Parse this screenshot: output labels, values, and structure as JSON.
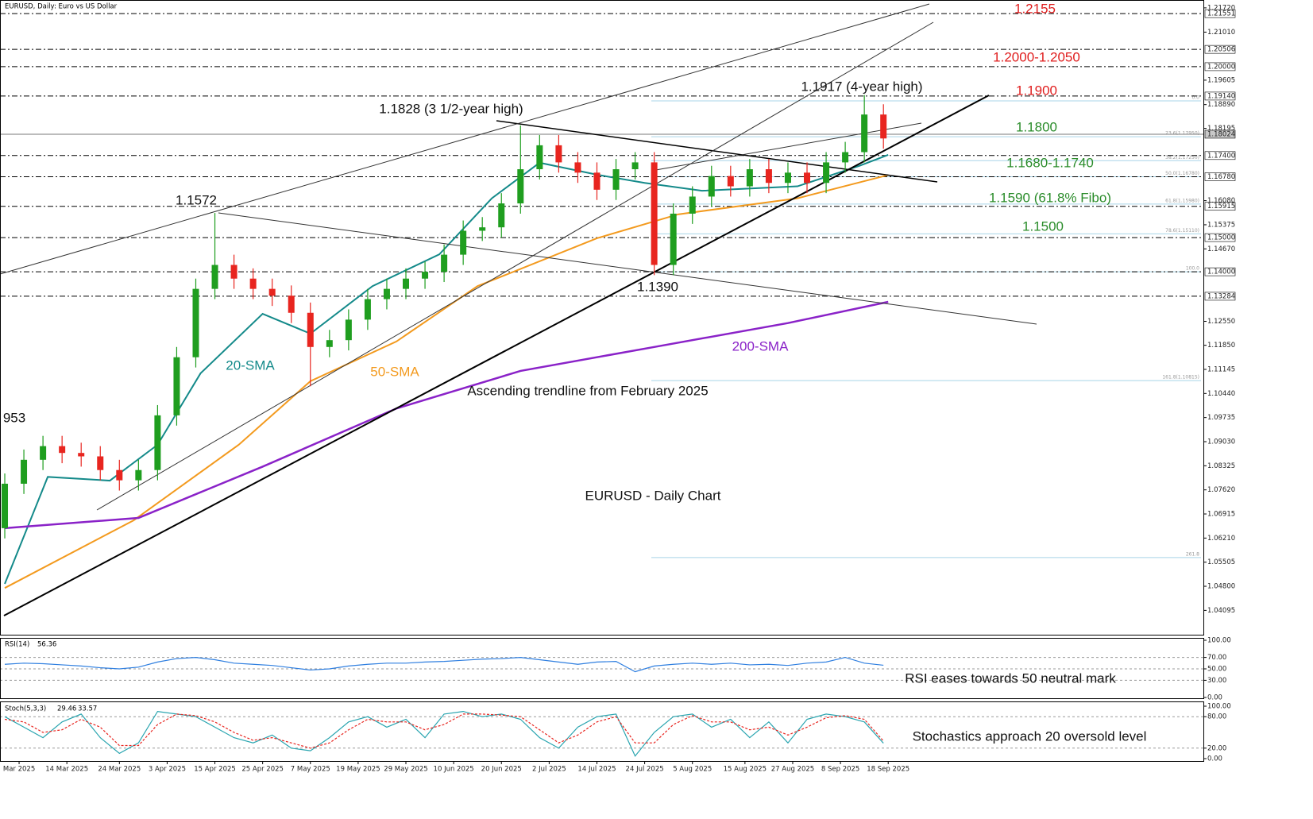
{
  "chart_data": [
    {
      "type": "candlestick",
      "title": "EURUSD, Daily:  Euro vs US Dollar",
      "x": [
        0,
        4,
        8,
        12,
        16,
        20,
        24,
        28,
        32,
        36,
        40,
        44,
        48,
        52,
        56,
        60,
        64,
        68,
        72,
        76,
        80,
        84,
        88,
        92,
        96,
        100,
        104,
        108,
        112,
        116,
        120,
        124,
        128,
        132,
        136,
        140,
        144,
        148,
        152,
        156,
        160,
        164,
        168,
        172,
        176,
        180,
        184
      ],
      "open": [
        1.065,
        1.078,
        1.085,
        1.089,
        1.087,
        1.086,
        1.082,
        1.079,
        1.082,
        1.098,
        1.115,
        1.135,
        1.142,
        1.138,
        1.135,
        1.133,
        1.128,
        1.118,
        1.12,
        1.126,
        1.132,
        1.135,
        1.138,
        1.14,
        1.145,
        1.152,
        1.153,
        1.16,
        1.17,
        1.177,
        1.172,
        1.169,
        1.164,
        1.17,
        1.172,
        1.142,
        1.157,
        1.162,
        1.168,
        1.165,
        1.17,
        1.166,
        1.169,
        1.166,
        1.172,
        1.175,
        1.186
      ],
      "high": [
        1.081,
        1.088,
        1.092,
        1.092,
        1.09,
        1.089,
        1.085,
        1.085,
        1.101,
        1.118,
        1.138,
        1.1572,
        1.145,
        1.141,
        1.138,
        1.136,
        1.131,
        1.123,
        1.129,
        1.135,
        1.138,
        1.141,
        1.143,
        1.148,
        1.155,
        1.156,
        1.163,
        1.1828,
        1.18,
        1.18,
        1.175,
        1.172,
        1.173,
        1.175,
        1.175,
        1.16,
        1.165,
        1.171,
        1.171,
        1.173,
        1.173,
        1.172,
        1.172,
        1.175,
        1.178,
        1.1917,
        1.189
      ],
      "low": [
        1.062,
        1.075,
        1.082,
        1.084,
        1.083,
        1.079,
        1.076,
        1.076,
        1.079,
        1.095,
        1.112,
        1.132,
        1.135,
        1.132,
        1.13,
        1.125,
        1.1065,
        1.115,
        1.117,
        1.123,
        1.129,
        1.132,
        1.135,
        1.137,
        1.142,
        1.149,
        1.15,
        1.157,
        1.167,
        1.169,
        1.166,
        1.161,
        1.161,
        1.167,
        1.139,
        1.139,
        1.154,
        1.159,
        1.162,
        1.162,
        1.163,
        1.163,
        1.163,
        1.163,
        1.169,
        1.172,
        1.176
      ],
      "close": [
        1.078,
        1.085,
        1.089,
        1.087,
        1.086,
        1.082,
        1.079,
        1.082,
        1.098,
        1.115,
        1.135,
        1.142,
        1.138,
        1.135,
        1.133,
        1.128,
        1.118,
        1.12,
        1.126,
        1.132,
        1.135,
        1.138,
        1.14,
        1.145,
        1.152,
        1.153,
        1.16,
        1.17,
        1.177,
        1.172,
        1.169,
        1.164,
        1.17,
        1.172,
        1.142,
        1.157,
        1.162,
        1.168,
        1.165,
        1.17,
        1.166,
        1.169,
        1.166,
        1.172,
        1.175,
        1.186,
        1.179
      ],
      "up_color": "#1f9e1f",
      "down_color": "#e8251f",
      "xlim": [
        -1,
        251
      ],
      "xticks": [
        {
          "value": 3,
          "label": "Mar 2025"
        },
        {
          "value": 13,
          "label": "14 Mar 2025"
        },
        {
          "value": 24,
          "label": "24 Mar 2025"
        },
        {
          "value": 34,
          "label": "3 Apr 2025"
        },
        {
          "value": 44,
          "label": "15 Apr 2025"
        },
        {
          "value": 54,
          "label": "25 Apr 2025"
        },
        {
          "value": 64,
          "label": "7 May 2025"
        },
        {
          "value": 74,
          "label": "19 May 2025"
        },
        {
          "value": 84,
          "label": "29 May 2025"
        },
        {
          "value": 94,
          "label": "10 Jun 2025"
        },
        {
          "value": 104,
          "label": "20 Jun 2025"
        },
        {
          "value": 114,
          "label": "2 Jul 2025"
        },
        {
          "value": 124,
          "label": "14 Jul 2025"
        },
        {
          "value": 134,
          "label": "24 Jul 2025"
        },
        {
          "value": 144,
          "label": "5 Aug 2025"
        },
        {
          "value": 155,
          "label": "15 Aug 2025"
        },
        {
          "value": 165,
          "label": "27 Aug 2025"
        },
        {
          "value": 175,
          "label": "8 Sep 2025"
        },
        {
          "value": 185,
          "label": "18 Sep 2025"
        }
      ],
      "ylim": [
        1.0336,
        1.2195
      ],
      "yticks": [
        {
          "value": 1.04095,
          "label": "1.04095"
        },
        {
          "value": 1.048,
          "label": "1.04800"
        },
        {
          "value": 1.05505,
          "label": "1.05505"
        },
        {
          "value": 1.0621,
          "label": "1.06210"
        },
        {
          "value": 1.06915,
          "label": "1.06915"
        },
        {
          "value": 1.0762,
          "label": "1.07620"
        },
        {
          "value": 1.08325,
          "label": "1.08325"
        },
        {
          "value": 1.0903,
          "label": "1.09030"
        },
        {
          "value": 1.09735,
          "label": "1.09735"
        },
        {
          "value": 1.1044,
          "label": "1.10440"
        },
        {
          "value": 1.11145,
          "label": "1.11145"
        },
        {
          "value": 1.1185,
          "label": "1.11850"
        },
        {
          "value": 1.1255,
          "label": "1.12550"
        },
        {
          "value": 1.1467,
          "label": "1.14670"
        },
        {
          "value": 1.15375,
          "label": "1.15375"
        },
        {
          "value": 1.1608,
          "label": "1.16080"
        },
        {
          "value": 1.18195,
          "label": "1.18195"
        },
        {
          "value": 1.1889,
          "label": "1.18890"
        },
        {
          "value": 1.19605,
          "label": "1.19605"
        },
        {
          "value": 1.2101,
          "label": "1.21010"
        },
        {
          "value": 1.2172,
          "label": "1.21720"
        }
      ],
      "levels": [
        {
          "value": 1.21551,
          "label": "1.21551"
        },
        {
          "value": 1.20506,
          "label": "1.20506"
        },
        {
          "value": 1.2,
          "label": "1.20000"
        },
        {
          "value": 1.1914,
          "label": "1.19140"
        },
        {
          "value": 1.174,
          "label": "1.17400"
        },
        {
          "value": 1.1678,
          "label": "1.16780"
        },
        {
          "value": 1.15915,
          "label": "1.15915"
        },
        {
          "value": 1.15,
          "label": "1.15000"
        },
        {
          "value": 1.14,
          "label": "1.14000"
        },
        {
          "value": 1.13284,
          "label": "1.13284"
        }
      ],
      "current_price": {
        "value": 1.18024,
        "label": "1.18024"
      },
      "fibo": [
        {
          "value": 1.19,
          "label": "0.0"
        },
        {
          "value": 1.1795,
          "label": "23.6(1.17950)"
        },
        {
          "value": 1.1725,
          "label": "38.2(1.17250)"
        },
        {
          "value": 1.1678,
          "label": "50.0(1.16780)"
        },
        {
          "value": 1.1598,
          "label": "61.8(1.15980)"
        },
        {
          "value": 1.1511,
          "label": "78.6(1.15110)"
        },
        {
          "value": 1.14,
          "label": "100.0"
        },
        {
          "value": 1.10815,
          "label": "161.8(1.10815)"
        },
        {
          "value": 1.0564,
          "label": "261.8"
        }
      ],
      "overlays": [
        {
          "name": "20-SMA",
          "color": "#148a8a",
          "x": [
            0,
            9,
            22,
            32,
            41,
            54,
            64,
            77,
            91,
            102,
            112,
            124,
            134,
            146,
            166,
            179,
            185
          ],
          "values": [
            1.0487,
            1.08,
            1.0789,
            1.0894,
            1.1103,
            1.1277,
            1.1219,
            1.1358,
            1.1451,
            1.1615,
            1.1719,
            1.1684,
            1.166,
            1.1637,
            1.165,
            1.171,
            1.1742
          ]
        },
        {
          "name": "50-SMA",
          "color": "#f39a1e",
          "x": [
            0,
            27,
            49,
            64,
            82,
            99,
            124,
            141,
            166,
            185
          ],
          "values": [
            1.0475,
            1.0673,
            1.0894,
            1.108,
            1.1196,
            1.1358,
            1.1498,
            1.1568,
            1.1615,
            1.1683
          ]
        },
        {
          "name": "200-SMA",
          "color": "#8a22c8",
          "x": [
            0,
            28,
            54,
            82,
            108,
            136,
            164,
            185
          ],
          "values": [
            1.065,
            1.068,
            1.083,
            1.1,
            1.111,
            1.118,
            1.125,
            1.1312
          ]
        }
      ],
      "annotations": [
        "1.2155",
        "1.2000-1.2050",
        "1.1900",
        "1.1800",
        "1.1680-1.1740",
        "1.1590 (61.8% Fibo)",
        "1.1500",
        "1.1917 (4-year high)",
        "1.1828 (3 1/2-year high)",
        "1.1572",
        "1.1390",
        "Ascending trendline from February 2025",
        "953",
        "EURUSD - Daily Chart"
      ]
    },
    {
      "type": "line",
      "title": "RSI(14)",
      "x": [
        0,
        4,
        8,
        12,
        16,
        20,
        24,
        28,
        32,
        36,
        40,
        44,
        48,
        52,
        56,
        60,
        64,
        68,
        72,
        76,
        80,
        84,
        88,
        92,
        96,
        100,
        104,
        108,
        112,
        116,
        120,
        124,
        128,
        132,
        136,
        140,
        144,
        148,
        152,
        156,
        160,
        164,
        168,
        172,
        176,
        180,
        184
      ],
      "xlim": [
        -1,
        251
      ],
      "ylim": [
        0,
        100
      ],
      "yticks": [
        {
          "value": 0,
          "label": "0.00"
        },
        {
          "value": 30,
          "label": "30.00"
        },
        {
          "value": 50,
          "label": "50.00"
        },
        {
          "value": 70,
          "label": "70.00"
        },
        {
          "value": 100,
          "label": "100.00"
        }
      ],
      "series": [
        {
          "name": "RSI",
          "color": "#2f7fe0",
          "values": [
            58,
            60,
            59,
            57,
            55,
            52,
            50,
            53,
            62,
            68,
            70,
            66,
            60,
            58,
            56,
            52,
            48,
            50,
            55,
            58,
            60,
            60,
            62,
            63,
            65,
            67,
            68,
            70,
            66,
            62,
            58,
            62,
            63,
            45,
            55,
            58,
            60,
            58,
            60,
            57,
            58,
            56,
            60,
            62,
            70,
            60,
            56.36
          ]
        }
      ],
      "annotation": "RSI eases towards 50 neutral mark"
    },
    {
      "type": "line",
      "title": "Stoch(5,3,3)",
      "x": [
        0,
        4,
        8,
        12,
        16,
        20,
        24,
        28,
        32,
        36,
        40,
        44,
        48,
        52,
        56,
        60,
        64,
        68,
        72,
        76,
        80,
        84,
        88,
        92,
        96,
        100,
        104,
        108,
        112,
        116,
        120,
        124,
        128,
        132,
        136,
        140,
        144,
        148,
        152,
        156,
        160,
        164,
        168,
        172,
        176,
        180,
        184
      ],
      "xlim": [
        -1,
        251
      ],
      "ylim": [
        0,
        100
      ],
      "yticks": [
        {
          "value": 0,
          "label": "0.00"
        },
        {
          "value": 20,
          "label": "20.00"
        },
        {
          "value": 80,
          "label": "80.00"
        },
        {
          "value": 100,
          "label": "100.00"
        }
      ],
      "series": [
        {
          "name": "Main",
          "color": "#2aa5b0",
          "values": [
            80,
            60,
            40,
            70,
            85,
            40,
            10,
            30,
            90,
            85,
            80,
            60,
            40,
            30,
            45,
            20,
            15,
            40,
            70,
            80,
            60,
            75,
            40,
            85,
            90,
            80,
            85,
            75,
            40,
            20,
            60,
            80,
            85,
            5,
            50,
            80,
            85,
            60,
            75,
            40,
            70,
            30,
            75,
            85,
            80,
            70,
            29.46
          ]
        },
        {
          "name": "Signal",
          "color": "#e8251f",
          "values": [
            75,
            70,
            50,
            55,
            75,
            60,
            25,
            25,
            65,
            85,
            82,
            70,
            50,
            35,
            40,
            30,
            20,
            30,
            55,
            75,
            70,
            70,
            55,
            65,
            85,
            85,
            83,
            80,
            55,
            30,
            45,
            70,
            80,
            30,
            30,
            65,
            82,
            70,
            70,
            55,
            60,
            45,
            60,
            78,
            82,
            75,
            33.57
          ]
        }
      ],
      "annotation": "Stochastics approach 20 oversold level"
    }
  ]
}
